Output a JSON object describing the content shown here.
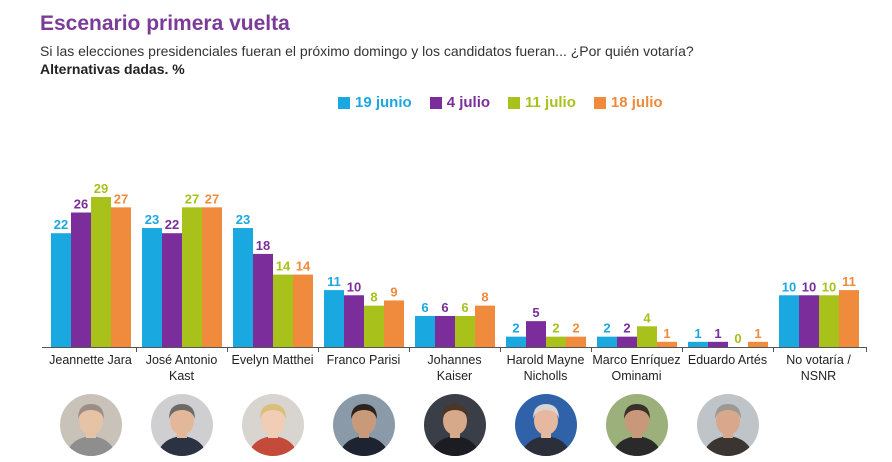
{
  "header": {
    "title": "Escenario primera vuelta",
    "subtitle": "Si las elecciones presidenciales fueran el próximo domingo y los candidatos fueran... ¿Por quién votaría?",
    "note": "Alternativas dadas. %"
  },
  "colors": {
    "series": [
      "#1aa8e0",
      "#7b2d9b",
      "#a8c11b",
      "#f08a3c"
    ],
    "title": "#7b3b98"
  },
  "portraits": [
    {
      "name": "Jeannette Jara",
      "bg": "#c9c2b8",
      "face": "#e7c3a6",
      "hair": "#9c8e86",
      "clothes": "#8e8e8e"
    },
    {
      "name": "José Antonio Kast",
      "bg": "#cfcfd2",
      "face": "#e2b79a",
      "hair": "#6d6a66",
      "clothes": "#2b3242"
    },
    {
      "name": "Evelyn Matthei",
      "bg": "#d8d4d0",
      "face": "#f0cdb4",
      "hair": "#d9c07a",
      "clothes": "#c44a3a"
    },
    {
      "name": "Franco Parisi",
      "bg": "#8a9aa8",
      "face": "#c99a7a",
      "hair": "#2c241f",
      "clothes": "#1d2330"
    },
    {
      "name": "Johannes Kaiser",
      "bg": "#3a3f47",
      "face": "#d6a98a",
      "hair": "#4b3628",
      "clothes": "#1b1d22"
    },
    {
      "name": "Harold Mayne Nicholls",
      "bg": "#2f62a8",
      "face": "#e6b8a0",
      "hair": "#d8d4d0",
      "clothes": "#2a2f3a"
    },
    {
      "name": "Marco Enríquez Ominami",
      "bg": "#9bb07a",
      "face": "#c9987a",
      "hair": "#3a302a",
      "clothes": "#2a2a2a"
    },
    {
      "name": "Eduardo Artés",
      "bg": "#bfc4c8",
      "face": "#d9a88c",
      "hair": "#9e9892",
      "clothes": "#3a3530"
    }
  ],
  "chart_data": {
    "type": "bar",
    "title": "Escenario primera vuelta",
    "xlabel": "",
    "ylabel": "",
    "ylim": [
      0,
      29
    ],
    "grid": false,
    "legend": "top",
    "categories": [
      [
        "Jeannette Jara"
      ],
      [
        "José Antonio",
        "Kast"
      ],
      [
        "Evelyn Matthei"
      ],
      [
        "Franco Parisi"
      ],
      [
        "Johannes",
        "Kaiser"
      ],
      [
        "Harold Mayne",
        "Nicholls"
      ],
      [
        "Marco Enríquez",
        "Ominami"
      ],
      [
        "Eduardo Artés"
      ],
      [
        "No votaría /",
        "NSNR"
      ]
    ],
    "series": [
      {
        "name": "19 junio",
        "values": [
          22,
          23,
          23,
          11,
          6,
          2,
          2,
          1,
          10
        ]
      },
      {
        "name": "4 julio",
        "values": [
          26,
          22,
          18,
          10,
          6,
          5,
          2,
          1,
          10
        ]
      },
      {
        "name": "11 julio",
        "values": [
          29,
          27,
          14,
          8,
          6,
          2,
          4,
          0,
          10
        ]
      },
      {
        "name": "18 julio",
        "values": [
          27,
          27,
          14,
          9,
          8,
          2,
          1,
          1,
          11
        ]
      }
    ]
  }
}
